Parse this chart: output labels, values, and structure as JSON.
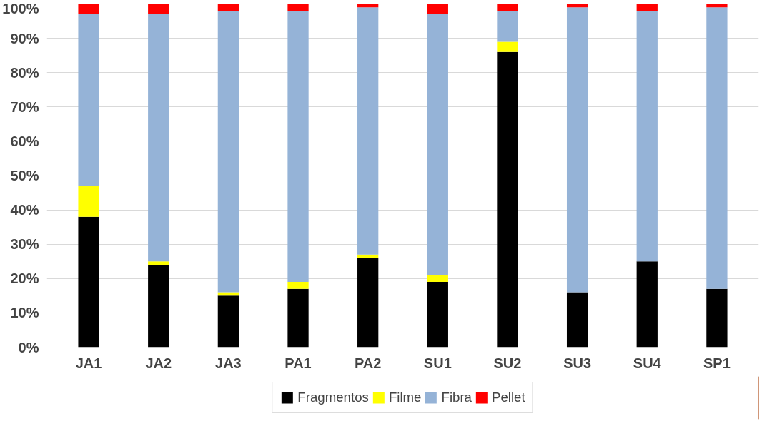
{
  "chart_data": {
    "type": "bar",
    "stacked": true,
    "categories": [
      "JA1",
      "JA2",
      "JA3",
      "PA1",
      "PA2",
      "SU1",
      "SU2",
      "SU3",
      "SU4",
      "SP1"
    ],
    "series": [
      {
        "name": "Fragmentos",
        "color": "#000000",
        "values": [
          38,
          24,
          15,
          17,
          26,
          19,
          86,
          16,
          25,
          17
        ]
      },
      {
        "name": "Filme",
        "color": "#ffff00",
        "values": [
          9,
          1,
          1,
          2,
          1,
          2,
          3,
          0,
          0,
          0
        ]
      },
      {
        "name": "Fibra",
        "color": "#95b3d7",
        "values": [
          50,
          72,
          82,
          79,
          72,
          76,
          9,
          83,
          73,
          82
        ]
      },
      {
        "name": "Pellet",
        "color": "#ff0000",
        "values": [
          3,
          3,
          2,
          2,
          1,
          3,
          2,
          1,
          2,
          1
        ]
      }
    ],
    "ylim": [
      0,
      100
    ],
    "yticks": [
      {
        "value": 0,
        "label": "0%"
      },
      {
        "value": 10,
        "label": "10%"
      },
      {
        "value": 20,
        "label": "20%"
      },
      {
        "value": 30,
        "label": "30%"
      },
      {
        "value": 40,
        "label": "40%"
      },
      {
        "value": 50,
        "label": "50%"
      },
      {
        "value": 60,
        "label": "60%"
      },
      {
        "value": 70,
        "label": "70%"
      },
      {
        "value": 80,
        "label": "80%"
      },
      {
        "value": 90,
        "label": "90%"
      },
      {
        "value": 100,
        "label": "100%"
      }
    ],
    "grid": "y",
    "legend": "bottom"
  }
}
